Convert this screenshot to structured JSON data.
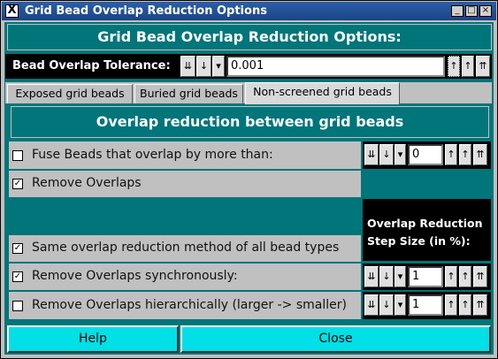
{
  "window": {
    "title": "Grid Bead Overlap Reduction Options",
    "app_icon": "X",
    "minimize_glyph": "_",
    "maximize_glyph": "□",
    "close_glyph": "×"
  },
  "header": {
    "title": "Grid Bead Overlap Reduction Options:"
  },
  "tolerance": {
    "label": "Bead Overlap Tolerance:",
    "value": "0.001",
    "dec_fast_glyph": "⇊",
    "dec_glyph": "↓",
    "dropdown_glyph": "▾",
    "inc_glyph": "↑",
    "inc_fast_glyph": "⇈"
  },
  "tabs": [
    {
      "label": "Exposed grid beads",
      "selected": false
    },
    {
      "label": "Buried grid beads",
      "selected": false
    },
    {
      "label": "Non-screened grid beads",
      "selected": true
    }
  ],
  "panel": {
    "title": "Overlap reduction between grid beads",
    "step_label_line1": "Overlap Reduction",
    "step_label_line2": "Step Size (in %):",
    "check_mark": "✓",
    "options": [
      {
        "label": "Fuse Beads that overlap by more than:",
        "checked": false,
        "value": "0"
      },
      {
        "label": "Remove Overlaps",
        "checked": true
      },
      {
        "label": "Same overlap reduction method of all bead types",
        "checked": true
      },
      {
        "label": "Remove Overlaps synchronously:",
        "checked": true,
        "value": "1"
      },
      {
        "label": "Remove Overlaps hierarchically (larger -> smaller)",
        "checked": false,
        "value": "1"
      }
    ]
  },
  "buttons": {
    "help": "Help",
    "close": "Close"
  },
  "colors": {
    "teal": "#00757a",
    "cyan_button": "#00e0e6",
    "title_blue": "#1b4487"
  }
}
